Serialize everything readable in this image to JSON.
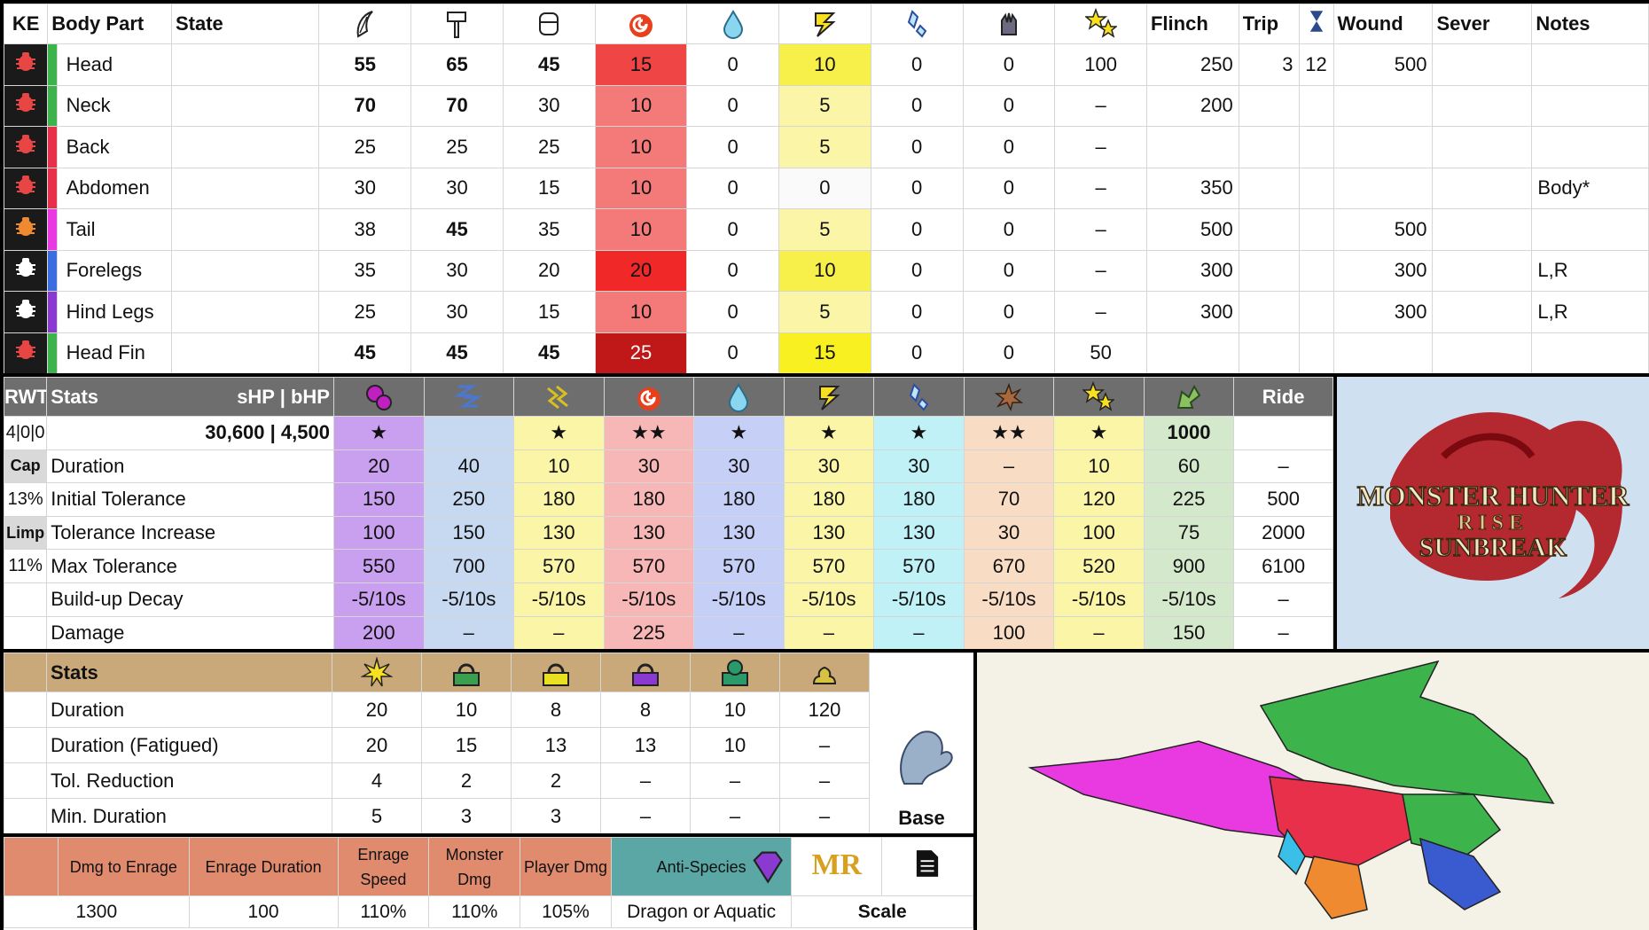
{
  "parts_table": {
    "headers": {
      "ke": "KE",
      "body_part": "Body Part",
      "state": "State",
      "flinch": "Flinch",
      "trip": "Trip",
      "wound": "Wound",
      "sever": "Sever",
      "notes": "Notes"
    },
    "icons": [
      "sever-icon",
      "blunt-icon",
      "shot-icon",
      "fire-icon",
      "water-icon",
      "thunder-icon",
      "ice-icon",
      "dragon-icon",
      "stun-icon",
      "hourglass-icon"
    ],
    "rows": [
      {
        "name": "Head",
        "color": "#3cb44b",
        "ke": "#e84545",
        "state": "",
        "sever": "55",
        "blunt": "65",
        "shot": "45",
        "fire": "15",
        "water": "0",
        "thunder": "10",
        "ice": "0",
        "dragon": "0",
        "stun": "100",
        "flinch": "250",
        "trip": "3",
        "trip2": "12",
        "wound": "500",
        "sev": "",
        "notes": "",
        "bold": [
          1,
          1,
          1
        ],
        "fireBg": "#f04545",
        "thunderBg": "#f8f04a"
      },
      {
        "name": "Neck",
        "color": "#3cb44b",
        "ke": "#e84545",
        "state": "",
        "sever": "70",
        "blunt": "70",
        "shot": "30",
        "fire": "10",
        "water": "0",
        "thunder": "5",
        "ice": "0",
        "dragon": "0",
        "stun": "–",
        "flinch": "200",
        "trip": "",
        "trip2": "",
        "wound": "",
        "sev": "",
        "notes": "",
        "bold": [
          1,
          1,
          0
        ],
        "fireBg": "#f47a7a",
        "thunderBg": "#fbf5a8"
      },
      {
        "name": "Back",
        "color": "#e8304a",
        "ke": "#e84545",
        "state": "",
        "sever": "25",
        "blunt": "25",
        "shot": "25",
        "fire": "10",
        "water": "0",
        "thunder": "5",
        "ice": "0",
        "dragon": "0",
        "stun": "–",
        "flinch": "",
        "trip": "",
        "trip2": "",
        "wound": "",
        "sev": "",
        "notes": "",
        "bold": [
          0,
          0,
          0
        ],
        "fireBg": "#f47a7a",
        "thunderBg": "#fbf5a8"
      },
      {
        "name": "Abdomen",
        "color": "#e8304a",
        "ke": "#e84545",
        "state": "",
        "sever": "30",
        "blunt": "30",
        "shot": "15",
        "fire": "10",
        "water": "0",
        "thunder": "0",
        "ice": "0",
        "dragon": "0",
        "stun": "–",
        "flinch": "350",
        "trip": "",
        "trip2": "",
        "wound": "",
        "sev": "",
        "notes": "Body*",
        "bold": [
          0,
          0,
          0
        ],
        "fireBg": "#f47a7a",
        "thunderBg": "#fafafa"
      },
      {
        "name": "Tail",
        "color": "#e83ae0",
        "ke": "#f08a30",
        "state": "",
        "sever": "38",
        "blunt": "45",
        "shot": "35",
        "fire": "10",
        "water": "0",
        "thunder": "5",
        "ice": "0",
        "dragon": "0",
        "stun": "–",
        "flinch": "500",
        "trip": "",
        "trip2": "",
        "wound": "500",
        "sev": "",
        "notes": "",
        "bold": [
          0,
          1,
          0
        ],
        "fireBg": "#f47a7a",
        "thunderBg": "#fbf5a8"
      },
      {
        "name": "Forelegs",
        "color": "#3a6ee0",
        "ke": "#ffffff",
        "state": "",
        "sever": "35",
        "blunt": "30",
        "shot": "20",
        "fire": "20",
        "water": "0",
        "thunder": "10",
        "ice": "0",
        "dragon": "0",
        "stun": "–",
        "flinch": "300",
        "trip": "",
        "trip2": "",
        "wound": "300",
        "sev": "",
        "notes": "L,R",
        "bold": [
          0,
          0,
          0
        ],
        "fireBg": "#f02828",
        "thunderBg": "#f8f04a"
      },
      {
        "name": "Hind Legs",
        "color": "#8a3ad0",
        "ke": "#ffffff",
        "state": "",
        "sever": "25",
        "blunt": "30",
        "shot": "15",
        "fire": "10",
        "water": "0",
        "thunder": "5",
        "ice": "0",
        "dragon": "0",
        "stun": "–",
        "flinch": "300",
        "trip": "",
        "trip2": "",
        "wound": "300",
        "sev": "",
        "notes": "L,R",
        "bold": [
          0,
          0,
          0
        ],
        "fireBg": "#f47a7a",
        "thunderBg": "#fbf5a8"
      },
      {
        "name": "Head Fin",
        "color": "#3cb44b",
        "ke": "#e84545",
        "state": "",
        "sever": "45",
        "blunt": "45",
        "shot": "45",
        "fire": "25",
        "water": "0",
        "thunder": "15",
        "ice": "0",
        "dragon": "0",
        "stun": "50",
        "flinch": "",
        "trip": "",
        "trip2": "",
        "wound": "",
        "sev": "",
        "notes": "",
        "bold": [
          1,
          1,
          1
        ],
        "fireBg": "#c01818",
        "thunderBg": "#f8f020"
      }
    ]
  },
  "status_table": {
    "header": {
      "rwt": "RWT",
      "stats": "Stats",
      "shp": "sHP  |  bHP",
      "ride": "Ride"
    },
    "icons": [
      "poison-icon",
      "sleep-icon",
      "paralysis-icon",
      "fireblight-icon",
      "waterblight-icon",
      "thunderblight-icon",
      "iceblight-icon",
      "blast-icon",
      "stun-icon",
      "exhaust-icon"
    ],
    "col_colors": [
      "#c9a0f0",
      "#c6d9f0",
      "#fbf5a8",
      "#f7b7b7",
      "#c6d0f7",
      "#fbf5a8",
      "#bff1f7",
      "#f9dcc4",
      "#fbf5a8",
      "#d4e8cc",
      "#ffffff"
    ],
    "side": [
      "4|0|0",
      "Cap",
      "13%",
      "Limp",
      "11%",
      "",
      ""
    ],
    "rows": [
      {
        "label": "30,600 | 4,500",
        "values": [
          "★",
          "",
          "★",
          "★★",
          "★",
          "★",
          "★",
          "★★",
          "★",
          "1000",
          ""
        ]
      },
      {
        "label": "Duration",
        "values": [
          "20",
          "40",
          "10",
          "30",
          "30",
          "30",
          "30",
          "–",
          "10",
          "60",
          "–"
        ]
      },
      {
        "label": "Initial Tolerance",
        "values": [
          "150",
          "250",
          "180",
          "180",
          "180",
          "180",
          "180",
          "70",
          "120",
          "225",
          "500"
        ]
      },
      {
        "label": "Tolerance Increase",
        "values": [
          "100",
          "150",
          "130",
          "130",
          "130",
          "130",
          "130",
          "30",
          "100",
          "75",
          "2000"
        ]
      },
      {
        "label": "Max Tolerance",
        "values": [
          "550",
          "700",
          "570",
          "570",
          "570",
          "570",
          "570",
          "670",
          "520",
          "900",
          "6100"
        ]
      },
      {
        "label": "Build-up Decay",
        "values": [
          "-5/10s",
          "-5/10s",
          "-5/10s",
          "-5/10s",
          "-5/10s",
          "-5/10s",
          "-5/10s",
          "-5/10s",
          "-5/10s",
          "-5/10s",
          "–"
        ]
      },
      {
        "label": "Damage",
        "values": [
          "200",
          "–",
          "–",
          "225",
          "–",
          "–",
          "–",
          "100",
          "–",
          "150",
          "–"
        ]
      }
    ]
  },
  "trap_table": {
    "header": "Stats",
    "icons": [
      "flash-icon",
      "shock-trap-icon",
      "pitfall-trap-icon",
      "purple-trap-icon",
      "green-trap-icon",
      "dung-icon"
    ],
    "base_label": "Base",
    "rows": [
      {
        "label": "Duration",
        "values": [
          "20",
          "10",
          "8",
          "8",
          "10",
          "120"
        ]
      },
      {
        "label": "Duration (Fatigued)",
        "values": [
          "20",
          "15",
          "13",
          "13",
          "10",
          "–"
        ]
      },
      {
        "label": "Tol. Reduction",
        "values": [
          "4",
          "2",
          "2",
          "–",
          "–",
          "–"
        ]
      },
      {
        "label": "Min. Duration",
        "values": [
          "5",
          "3",
          "3",
          "–",
          "–",
          "–"
        ]
      }
    ]
  },
  "enrage_table": {
    "headers": [
      "Dmg to Enrage",
      "Enrage Duration",
      "Enrage Speed",
      "Monster Dmg",
      "Player Dmg",
      "Anti-Species"
    ],
    "values": [
      "1300",
      "100",
      "110%",
      "110%",
      "105%",
      "Dragon or Aquatic"
    ],
    "mr_label": "MR",
    "scale_label": "Scale"
  },
  "logo": {
    "line1": "MONSTER HUNTER",
    "line2": "RISE",
    "line3": "SUNBREAK"
  }
}
